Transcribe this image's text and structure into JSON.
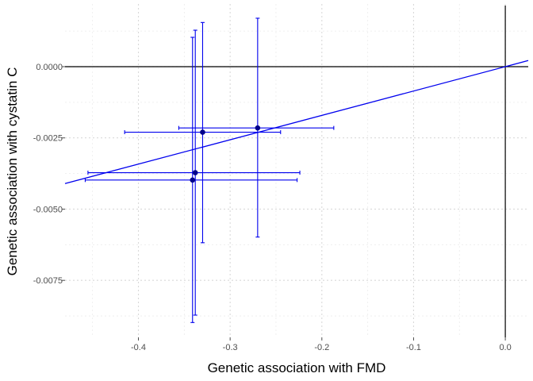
{
  "chart_data": {
    "type": "scatter",
    "title": "",
    "xlabel": "Genetic association with FMD",
    "ylabel": "Genetic association with cystatin C",
    "xlim": [
      -0.48,
      0.025
    ],
    "ylim": [
      -0.0095,
      0.0022
    ],
    "x_ticks": [
      -0.4,
      -0.3,
      -0.2,
      -0.1,
      0.0
    ],
    "x_tick_labels": [
      "-0.4",
      "-0.3",
      "-0.2",
      "-0.1",
      "0.0"
    ],
    "y_ticks": [
      0.0,
      -0.0025,
      -0.005,
      -0.0075
    ],
    "y_tick_labels": [
      "0.0000",
      "-0.0025",
      "-0.0050",
      "-0.0075"
    ],
    "grid": true,
    "legend": "none",
    "points": [
      {
        "x": -0.27,
        "y": -0.00215,
        "x_lo": -0.356,
        "x_hi": -0.187,
        "y_lo": -0.00598,
        "y_hi": 0.0017
      },
      {
        "x": -0.33,
        "y": -0.0023,
        "x_lo": -0.415,
        "x_hi": -0.245,
        "y_lo": -0.00618,
        "y_hi": 0.00155
      },
      {
        "x": -0.338,
        "y": -0.00372,
        "x_lo": -0.455,
        "x_hi": -0.224,
        "y_lo": -0.00872,
        "y_hi": 0.00128
      },
      {
        "x": -0.341,
        "y": -0.00398,
        "x_lo": -0.458,
        "x_hi": -0.227,
        "y_lo": -0.00898,
        "y_hi": 0.00103
      }
    ],
    "fit_line": {
      "slope": 0.00855,
      "intercept": 0.0
    },
    "colors": {
      "point": "#00008b",
      "error_bar": "#0000ee",
      "fit_line": "#0000ee",
      "reference_line": "#000000",
      "grid": "#d9d9d9"
    }
  }
}
